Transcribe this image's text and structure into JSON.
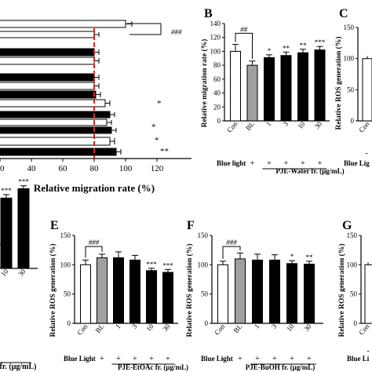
{
  "chart_data": [
    {
      "panel": "A",
      "type": "bar",
      "orientation": "horizontal",
      "xlabel": "Relative migration rate (%)",
      "xlim": [
        0,
        120
      ],
      "ticks": [
        "0",
        "20",
        "40",
        "60",
        "80",
        "100",
        "120"
      ],
      "visible_tick_labels": [
        "20",
        "40",
        "60",
        "80",
        "100",
        "120"
      ],
      "reference_line": 80,
      "annotations": [
        "###",
        "*",
        "*",
        "*",
        "**"
      ],
      "rows": [
        {
          "color": "white",
          "value": 100,
          "err": 4
        },
        {
          "color": "white",
          "value": 80,
          "err": 3
        },
        {
          "color": "black",
          "value": 80,
          "err": 3
        },
        {
          "color": "white",
          "value": 80,
          "err": 3
        },
        {
          "color": "black",
          "value": 80,
          "err": 3
        },
        {
          "color": "white",
          "value": 80,
          "err": 3
        },
        {
          "color": "black",
          "value": 81,
          "err": 3
        },
        {
          "color": "white",
          "value": 87,
          "err": 3
        },
        {
          "color": "black",
          "value": 90,
          "err": 3
        },
        {
          "color": "white",
          "value": 88,
          "err": 3
        },
        {
          "color": "black",
          "value": 91,
          "err": 3
        },
        {
          "color": "white",
          "value": 90,
          "err": 3
        },
        {
          "color": "black",
          "value": 94,
          "err": 3
        }
      ]
    },
    {
      "panel": "B",
      "type": "bar",
      "ylabel": "Relative migration rate (%)",
      "ylim": [
        0,
        140
      ],
      "yticks": [
        "0",
        "20",
        "40",
        "60",
        "80",
        "100",
        "120",
        "140"
      ],
      "categories": [
        "Con",
        "BL",
        "1",
        "3",
        "10",
        "30"
      ],
      "values": [
        100,
        80,
        91,
        94,
        98,
        102
      ],
      "errors": [
        10,
        6,
        4,
        5,
        5,
        5
      ],
      "colors": [
        "#ffffff",
        "#a0a0a0",
        "#000000",
        "#000000",
        "#000000",
        "#000000"
      ],
      "significance": [
        "",
        "",
        "*",
        "**",
        "**",
        "***"
      ],
      "bracket_label": "##",
      "blue_light": [
        "-",
        "+",
        "+",
        "+",
        "+",
        "+"
      ],
      "blue_light_label": "Blue light",
      "group_label": "PJE-Water fr. (μg/mL)"
    },
    {
      "panel": "C",
      "type": "bar",
      "ylabel": "Relative ROS generation (%)",
      "ylim": [
        0,
        150
      ],
      "yticks": [
        "0",
        "50",
        "100",
        "150"
      ],
      "visible_categories": [
        "Con"
      ],
      "values": [
        100
      ],
      "errors": [
        4
      ],
      "colors": [
        "#ffffff"
      ],
      "blue_light": [
        "-"
      ],
      "blue_light_label": "Blue Lig"
    },
    {
      "panel": "D",
      "type": "bar",
      "visible_categories": [
        "10",
        "30"
      ],
      "values": [
        120,
        136
      ],
      "errors": [
        6,
        5
      ],
      "colors": [
        "#000000",
        "#000000"
      ],
      "significance": [
        "***",
        "***"
      ],
      "ylim": [
        0,
        150
      ],
      "group_label": "fr. (μg/mL)"
    },
    {
      "panel": "E",
      "type": "bar",
      "ylabel": "Relative ROS generation (%)",
      "ylim": [
        0,
        150
      ],
      "yticks": [
        "0",
        "50",
        "100",
        "150"
      ],
      "categories": [
        "Con",
        "BL",
        "1",
        "3",
        "10",
        "30"
      ],
      "values": [
        100,
        112,
        112,
        108,
        90,
        87
      ],
      "errors": [
        8,
        6,
        10,
        8,
        4,
        5
      ],
      "colors": [
        "#ffffff",
        "#a0a0a0",
        "#000000",
        "#000000",
        "#000000",
        "#000000"
      ],
      "significance": [
        "",
        "",
        "",
        "",
        "***",
        "***"
      ],
      "bracket_label": "###",
      "blue_light": [
        "-",
        "+",
        "+",
        "+",
        "+",
        "+"
      ],
      "blue_light_label": "Blue Light",
      "group_label": "PJE-EtOAc fr. (μg/mL)"
    },
    {
      "panel": "F",
      "type": "bar",
      "ylabel": "Relative ROS generation (%)",
      "ylim": [
        0,
        150
      ],
      "yticks": [
        "0",
        "50",
        "100",
        "150"
      ],
      "categories": [
        "Con",
        "BL",
        "1",
        "3",
        "10",
        "30"
      ],
      "values": [
        100,
        110,
        108,
        108,
        102,
        101
      ],
      "errors": [
        6,
        10,
        10,
        9,
        5,
        5
      ],
      "colors": [
        "#ffffff",
        "#a0a0a0",
        "#000000",
        "#000000",
        "#000000",
        "#000000"
      ],
      "significance": [
        "",
        "",
        "",
        "",
        "*",
        "**"
      ],
      "bracket_label": "###",
      "blue_light": [
        "-",
        "+",
        "+",
        "+",
        "+",
        "+"
      ],
      "blue_light_label": "Blue Light",
      "group_label": "PJE-BuOH fr. (μg/mL)"
    },
    {
      "panel": "G",
      "type": "bar",
      "ylabel": "Relative ROS generation (%)",
      "ylim": [
        0,
        150
      ],
      "yticks": [
        "0",
        "50",
        "100",
        "150"
      ],
      "visible_categories": [
        "Con"
      ],
      "values": [
        100
      ],
      "errors": [
        4
      ],
      "colors": [
        "#ffffff"
      ],
      "blue_light": [
        "-"
      ],
      "blue_light_label": "Blue Li"
    }
  ],
  "panel_letters": {
    "B": "B",
    "C": "C",
    "E": "E",
    "F": "F",
    "G": "G"
  },
  "partial_labels": {
    "d_ylabel": "%)"
  }
}
